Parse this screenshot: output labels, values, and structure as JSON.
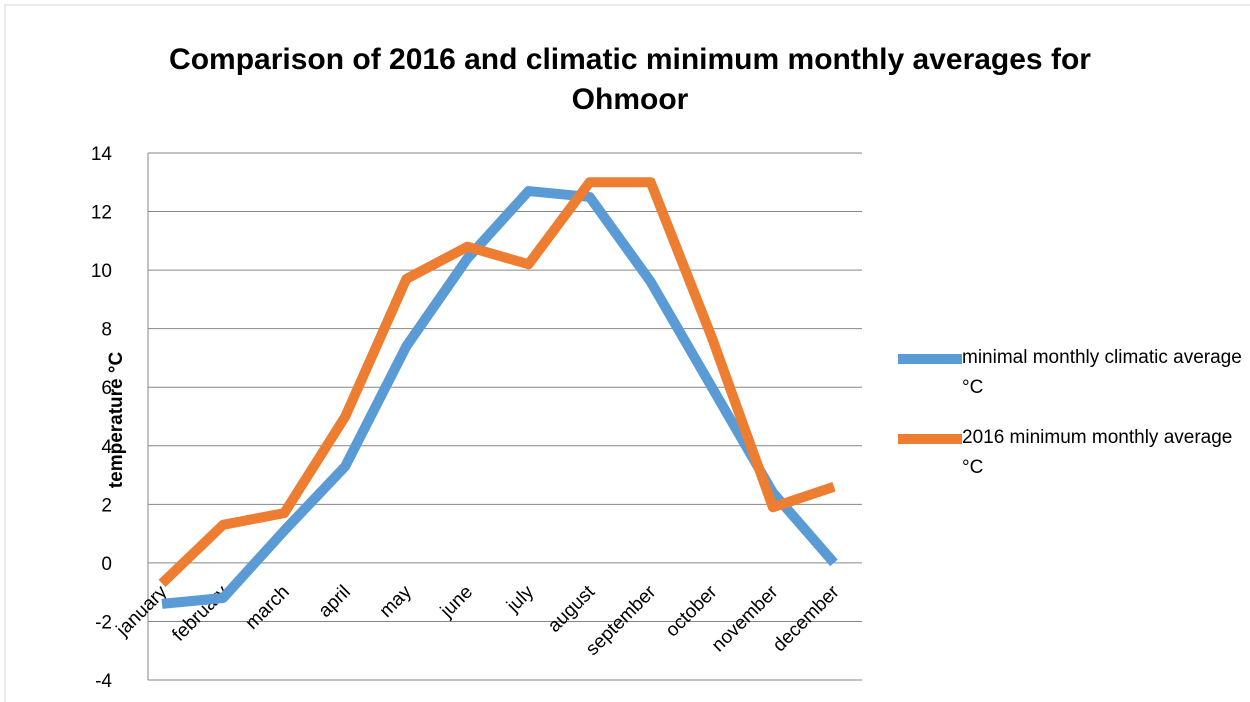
{
  "chart_data": {
    "type": "line",
    "title": "Comparison of 2016 and climatic minimum monthly  averages for Ohmoor",
    "y_label": "temperature  °C",
    "categories": [
      "january",
      "february",
      "march",
      "april",
      "may",
      "june",
      "july",
      "august",
      "september",
      "october",
      "november",
      "december"
    ],
    "series": [
      {
        "name": "minimal monthly climatic average °C",
        "color": "#5b9bd5",
        "values": [
          -1.4,
          -1.2,
          1.1,
          3.3,
          7.4,
          10.4,
          12.7,
          12.5,
          9.6,
          6.0,
          2.4,
          0.0
        ]
      },
      {
        "name": "2016 minimum monthly average °C",
        "color": "#ed7d31",
        "values": [
          -0.7,
          1.3,
          1.7,
          5.0,
          9.7,
          10.8,
          10.2,
          13.0,
          13.0,
          7.7,
          1.9,
          2.6
        ]
      }
    ],
    "ylim": [
      -4,
      14
    ],
    "yticks": [
      -4,
      -2,
      0,
      2,
      4,
      6,
      8,
      10,
      12,
      14
    ],
    "grid": true,
    "legend": "right"
  }
}
